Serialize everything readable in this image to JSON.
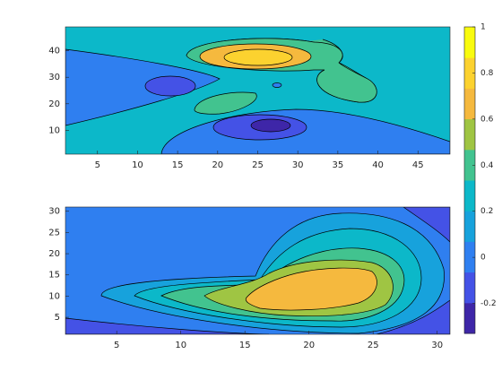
{
  "chart_data": [
    {
      "type": "contour",
      "xlim": [
        1,
        49
      ],
      "ylim": [
        1,
        49
      ],
      "xticks": [
        5,
        10,
        15,
        20,
        25,
        30,
        35,
        40,
        45
      ],
      "yticks": [
        10,
        20,
        30,
        40
      ]
    },
    {
      "type": "contour",
      "xlim": [
        1,
        31
      ],
      "ylim": [
        1,
        31
      ],
      "xticks": [
        5,
        10,
        15,
        20,
        25,
        30
      ],
      "yticks": [
        5,
        10,
        15,
        20,
        25,
        30
      ]
    }
  ],
  "colorbar": {
    "clim": [
      -0.33,
      1
    ],
    "ticks": [
      -0.2,
      0,
      0.2,
      0.4,
      0.6,
      0.8,
      1
    ],
    "colors": [
      "#3e26a8",
      "#4452e6",
      "#2f7ff0",
      "#17a2dc",
      "#0cb8c9",
      "#42c38f",
      "#9fc543",
      "#f5b93e",
      "#fcd22f",
      "#f9fb0e"
    ]
  }
}
